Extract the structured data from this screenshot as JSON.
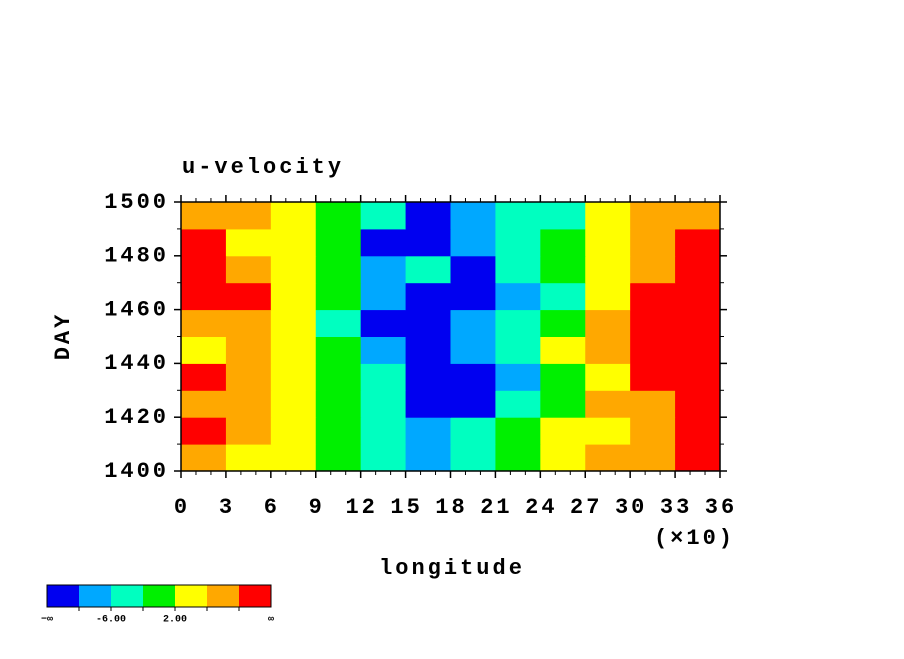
{
  "chart_data": {
    "type": "heatmap",
    "title": "u-velocity",
    "x_label": "longitude",
    "y_label": "DAY",
    "x_multiplier_label": "(×10)",
    "xlim": [
      0,
      36
    ],
    "ylim": [
      1400,
      1500
    ],
    "xticks": [
      0,
      3,
      6,
      9,
      12,
      15,
      18,
      21,
      24,
      27,
      30,
      33,
      36
    ],
    "yticks": [
      1400,
      1420,
      1440,
      1460,
      1480,
      1500
    ],
    "xminorticks": [
      1,
      2,
      4,
      5,
      7,
      8,
      10,
      11,
      13,
      14,
      16,
      17,
      19,
      20,
      22,
      23,
      25,
      26,
      28,
      29,
      31,
      32,
      34,
      35
    ],
    "yminorticks": [
      1410,
      1430,
      1450,
      1470,
      1490
    ],
    "x_edges": [
      0,
      3,
      6,
      9,
      12,
      15,
      18,
      21,
      24,
      27,
      30,
      33,
      36
    ],
    "y_edges": [
      1400,
      1410,
      1420,
      1430,
      1440,
      1450,
      1460,
      1470,
      1480,
      1490,
      1500
    ],
    "z": [
      [
        6,
        4,
        2,
        -2,
        -6,
        -10,
        -4,
        0,
        4,
        6,
        8,
        10
      ],
      [
        12,
        6,
        4,
        0,
        -4,
        -8,
        -6,
        -2,
        2,
        4,
        8,
        10
      ],
      [
        8,
        6,
        2,
        -2,
        -6,
        -12,
        -12,
        -6,
        0,
        6,
        8,
        12
      ],
      [
        12,
        8,
        4,
        0,
        -4,
        -12,
        -14,
        -8,
        -2,
        4,
        10,
        12
      ],
      [
        4,
        6,
        2,
        -2,
        -8,
        -12,
        -8,
        -4,
        2,
        8,
        12,
        14
      ],
      [
        8,
        6,
        2,
        -4,
        -12,
        -12,
        -10,
        -6,
        0,
        6,
        10,
        12
      ],
      [
        14,
        12,
        4,
        -2,
        -8,
        -12,
        -14,
        -10,
        -4,
        4,
        10,
        14
      ],
      [
        10,
        8,
        2,
        0,
        -8,
        -6,
        -12,
        -6,
        -2,
        2,
        6,
        12
      ],
      [
        12,
        4,
        2,
        -2,
        -12,
        -12,
        -8,
        -4,
        -2,
        4,
        8,
        14
      ],
      [
        8,
        6,
        4,
        0,
        -4,
        -12,
        -8,
        -6,
        -4,
        2,
        6,
        8
      ]
    ],
    "levels": [
      -10,
      -6,
      -2,
      2,
      6,
      10
    ],
    "colors": [
      "#0000f0",
      "#00a8ff",
      "#00ffc0",
      "#00f000",
      "#ffff00",
      "#ffa800",
      "#ff0000"
    ],
    "colorbar_ticks": [
      {
        "value": -6,
        "label": "-6.00"
      },
      {
        "value": 2,
        "label": "2.00"
      }
    ],
    "colorbar_end_labels": [
      "−∞",
      "∞"
    ]
  }
}
